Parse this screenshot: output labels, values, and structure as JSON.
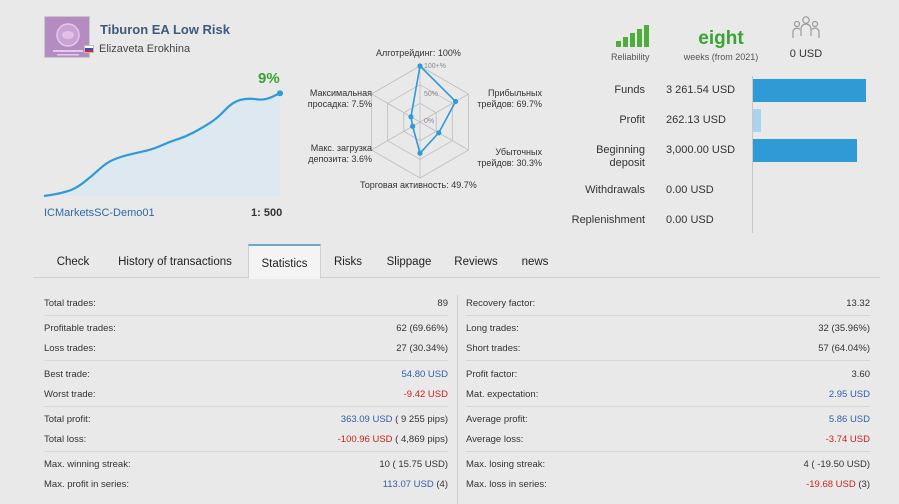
{
  "header": {
    "signal_name": "Tiburon EA Low Risk",
    "author": "Elizaveta Erokhina",
    "growth": "9%",
    "broker": "ICMarketsSC-Demo01",
    "leverage": "1: 500"
  },
  "growth_chart": {
    "values": [
      0.0,
      0.2,
      0.6,
      1.6,
      2.8,
      3.3,
      3.6,
      3.9,
      4.5,
      4.9,
      5.6,
      6.4,
      7.8,
      8.1,
      7.9,
      8.5
    ]
  },
  "radar": {
    "center_labels": [
      "100+%",
      "50%",
      "0%"
    ],
    "axes": [
      {
        "label": "Алготрейдинг: 100%",
        "value": 100
      },
      {
        "label": "Прибыльных трейдов: 69.7%",
        "value": 69.7
      },
      {
        "label": "Убыточных трейдов: 30.3%",
        "value": 30.3
      },
      {
        "label": "Торговая активность: 49.7%",
        "value": 49.7
      },
      {
        "label": "Макс. загрузка депозита: 3.6%",
        "value": 3.6
      },
      {
        "label": "Максимальная просадка: 7.5%",
        "value": 7.5
      }
    ],
    "label_lines": {
      "top": "Алготрейдинг: 100%",
      "right_top_1": "Прибыльных",
      "right_top_2": "трейдов: 69.7%",
      "right_bot_1": "Убыточных",
      "right_bot_2": "трейдов: 30.3%",
      "bottom": "Торговая активность: 49.7%",
      "left_bot_1": "Макс. загрузка",
      "left_bot_2": "депозита: 3.6%",
      "left_top_1": "Максимальная",
      "left_top_2": "просадка: 7.5%"
    }
  },
  "reliability": {
    "label": "Reliability",
    "level": 5,
    "max": 5
  },
  "weeks": {
    "value": "eight",
    "label": "weeks (from 2021)"
  },
  "subscribers": {
    "value": "0 USD"
  },
  "money": [
    {
      "label": "Funds",
      "label2": "",
      "value": "3 261.54 USD",
      "fraction": 1.0
    },
    {
      "label": "Profit",
      "label2": "",
      "value": "262.13 USD",
      "fraction": 0.08
    },
    {
      "label": "Beginning",
      "label2": "deposit",
      "value": "3,000.00 USD",
      "fraction": 0.92
    },
    {
      "label": "Withdrawals",
      "label2": "",
      "value": "0.00 USD",
      "fraction": 0
    },
    {
      "label": "Replenishment",
      "label2": "",
      "value": "0.00 USD",
      "fraction": 0
    }
  ],
  "tabs": [
    "Check",
    "History of transactions",
    "Statistics",
    "Risks",
    "Slippage",
    "Reviews",
    "news"
  ],
  "stats_left": [
    {
      "k": "Total trades:",
      "v": "89",
      "v2": "",
      "c": ""
    },
    {
      "k": "Profitable trades:",
      "v": "62 (69.66%)",
      "v2": "",
      "c": ""
    },
    {
      "k": "Loss trades:",
      "v": "27 (30.34%)",
      "v2": "",
      "c": ""
    },
    {
      "k": "Best trade:",
      "v": "54.80 USD",
      "v2": "",
      "c": "blue"
    },
    {
      "k": "Worst trade:",
      "v": "-9.42 USD",
      "v2": "",
      "c": "red"
    },
    {
      "k": "Total profit:",
      "v": "363.09 USD",
      "v2": " ( 9 255 pips)",
      "c": "blue"
    },
    {
      "k": "Total loss:",
      "v": "-100.96 USD",
      "v2": " ( 4,869 pips)",
      "c": "red"
    },
    {
      "k": "Max. winning streak:",
      "v": "10 ( 15.75 USD)",
      "v2": "",
      "c": ""
    },
    {
      "k": "Max. profit in series:",
      "v": "113.07 USD",
      "v2": " (4)",
      "c": "blue"
    }
  ],
  "stats_right": [
    {
      "k": "Recovery factor:",
      "v": "13.32",
      "v2": "",
      "c": ""
    },
    {
      "k": "Long trades:",
      "v": "32 (35.96%)",
      "v2": "",
      "c": ""
    },
    {
      "k": "Short trades:",
      "v": "57 (64.04%)",
      "v2": "",
      "c": ""
    },
    {
      "k": "Profit factor:",
      "v": "3.60",
      "v2": "",
      "c": ""
    },
    {
      "k": "Mat. expectation:",
      "v": "2.95 USD",
      "v2": "",
      "c": "blue"
    },
    {
      "k": "Average profit:",
      "v": "5.86 USD",
      "v2": "",
      "c": "blue"
    },
    {
      "k": "Average loss:",
      "v": "-3.74 USD",
      "v2": "",
      "c": "red"
    },
    {
      "k": "Max. losing streak:",
      "v": "4 ( -19.50 USD)",
      "v2": "",
      "c": ""
    },
    {
      "k": "Max. loss in series:",
      "v": "-19.68 USD",
      "v2": " (3)",
      "c": "red"
    }
  ],
  "colors": {
    "accent": "#2e9ad6",
    "green": "#3aa333",
    "link": "#2a6aa8"
  }
}
